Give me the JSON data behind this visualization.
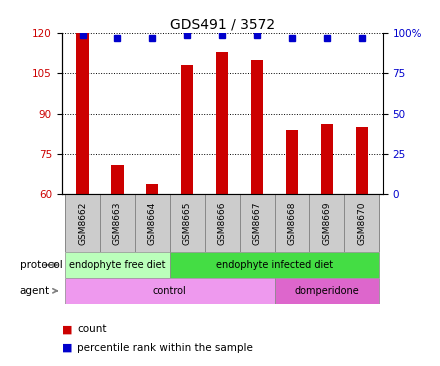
{
  "title": "GDS491 / 3572",
  "samples": [
    "GSM8662",
    "GSM8663",
    "GSM8664",
    "GSM8665",
    "GSM8666",
    "GSM8667",
    "GSM8668",
    "GSM8669",
    "GSM8670"
  ],
  "counts": [
    120,
    71,
    64,
    108,
    113,
    110,
    84,
    86,
    85
  ],
  "percentile_ranks": [
    99,
    97,
    97,
    99,
    99,
    99,
    97,
    97,
    97
  ],
  "ylim": [
    60,
    120
  ],
  "yticks_left": [
    60,
    75,
    90,
    105,
    120
  ],
  "yticks_right": [
    0,
    25,
    50,
    75,
    100
  ],
  "bar_color": "#cc0000",
  "dot_color": "#0000cc",
  "protocol_groups": [
    {
      "label": "endophyte free diet",
      "start": 0,
      "end": 3,
      "color": "#bbffbb"
    },
    {
      "label": "endophyte infected diet",
      "start": 3,
      "end": 9,
      "color": "#44dd44"
    }
  ],
  "agent_groups": [
    {
      "label": "control",
      "start": 0,
      "end": 6,
      "color": "#ee99ee"
    },
    {
      "label": "domperidone",
      "start": 6,
      "end": 9,
      "color": "#dd66cc"
    }
  ],
  "legend_count_label": "count",
  "legend_pct_label": "percentile rank within the sample",
  "xlabel_protocol": "protocol",
  "xlabel_agent": "agent",
  "bar_width": 0.35,
  "title_fontsize": 10,
  "tick_fontsize": 7.5,
  "label_fontsize": 8,
  "sample_box_color": "#cccccc",
  "sample_box_edge": "#888888"
}
